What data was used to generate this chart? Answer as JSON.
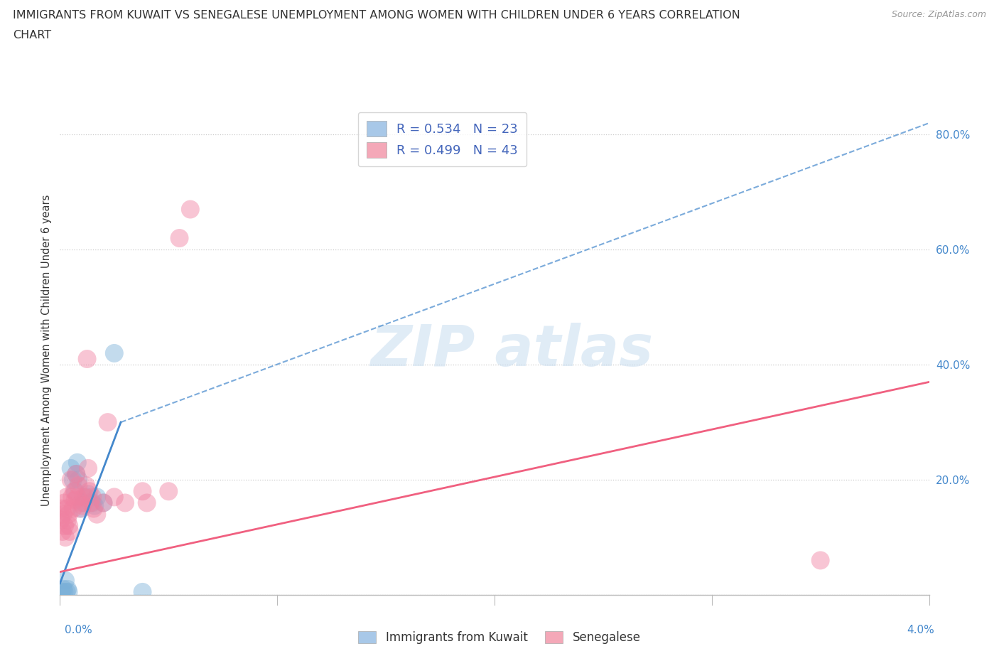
{
  "title_line1": "IMMIGRANTS FROM KUWAIT VS SENEGALESE UNEMPLOYMENT AMONG WOMEN WITH CHILDREN UNDER 6 YEARS CORRELATION",
  "title_line2": "CHART",
  "source": "Source: ZipAtlas.com",
  "ylabel": "Unemployment Among Women with Children Under 6 years",
  "x_lim": [
    0.0,
    0.04
  ],
  "y_lim": [
    0.0,
    0.85
  ],
  "y_ticks": [
    0.0,
    0.2,
    0.4,
    0.6,
    0.8
  ],
  "y_tick_labels": [
    "",
    "20.0%",
    "40.0%",
    "60.0%",
    "80.0%"
  ],
  "legend_entries": [
    {
      "label": "R = 0.534   N = 23",
      "color": "#a8c8e8"
    },
    {
      "label": "R = 0.499   N = 43",
      "color": "#f4a8b8"
    }
  ],
  "legend_bottom": [
    {
      "label": "Immigrants from Kuwait",
      "color": "#a8c8e8"
    },
    {
      "label": "Senegalese",
      "color": "#f4a8b8"
    }
  ],
  "kuwait_points": [
    [
      8e-05,
      0.005
    ],
    [
      0.00015,
      0.01
    ],
    [
      0.0002,
      0.005
    ],
    [
      0.00025,
      0.025
    ],
    [
      0.0003,
      0.005
    ],
    [
      0.00035,
      0.01
    ],
    [
      0.0004,
      0.005
    ],
    [
      0.0005,
      0.22
    ],
    [
      0.0006,
      0.2
    ],
    [
      0.0007,
      0.18
    ],
    [
      0.00075,
      0.21
    ],
    [
      0.0008,
      0.23
    ],
    [
      0.00085,
      0.2
    ],
    [
      0.001,
      0.15
    ],
    [
      0.0011,
      0.16
    ],
    [
      0.0012,
      0.17
    ],
    [
      0.0013,
      0.175
    ],
    [
      0.0015,
      0.16
    ],
    [
      0.0016,
      0.155
    ],
    [
      0.0017,
      0.17
    ],
    [
      0.002,
      0.16
    ],
    [
      0.0025,
      0.42
    ],
    [
      0.0038,
      0.005
    ]
  ],
  "senegalese_points": [
    [
      5e-05,
      0.13
    ],
    [
      0.0001,
      0.15
    ],
    [
      0.00012,
      0.11
    ],
    [
      0.00015,
      0.14
    ],
    [
      0.0002,
      0.16
    ],
    [
      0.00022,
      0.12
    ],
    [
      0.00025,
      0.1
    ],
    [
      0.0003,
      0.17
    ],
    [
      0.00032,
      0.15
    ],
    [
      0.00035,
      0.13
    ],
    [
      0.0004,
      0.14
    ],
    [
      0.00042,
      0.12
    ],
    [
      0.00045,
      0.11
    ],
    [
      0.0005,
      0.2
    ],
    [
      0.00055,
      0.17
    ],
    [
      0.0006,
      0.15
    ],
    [
      0.00065,
      0.18
    ],
    [
      0.0007,
      0.165
    ],
    [
      0.00075,
      0.21
    ],
    [
      0.0008,
      0.17
    ],
    [
      0.00085,
      0.19
    ],
    [
      0.0009,
      0.15
    ],
    [
      0.001,
      0.16
    ],
    [
      0.00105,
      0.155
    ],
    [
      0.0011,
      0.17
    ],
    [
      0.0012,
      0.19
    ],
    [
      0.00125,
      0.41
    ],
    [
      0.0013,
      0.22
    ],
    [
      0.00135,
      0.18
    ],
    [
      0.0014,
      0.16
    ],
    [
      0.0015,
      0.17
    ],
    [
      0.00155,
      0.15
    ],
    [
      0.0017,
      0.14
    ],
    [
      0.002,
      0.16
    ],
    [
      0.0022,
      0.3
    ],
    [
      0.0025,
      0.17
    ],
    [
      0.003,
      0.16
    ],
    [
      0.0038,
      0.18
    ],
    [
      0.004,
      0.16
    ],
    [
      0.005,
      0.18
    ],
    [
      0.0055,
      0.62
    ],
    [
      0.006,
      0.67
    ],
    [
      0.035,
      0.06
    ]
  ],
  "kuwait_solid_line": {
    "x": [
      0.0,
      0.0028
    ],
    "y": [
      0.02,
      0.3
    ]
  },
  "kuwait_dashed_line": {
    "x": [
      0.0028,
      0.04
    ],
    "y": [
      0.3,
      0.82
    ]
  },
  "senegalese_solid_line": {
    "x": [
      0.0,
      0.04
    ],
    "y": [
      0.04,
      0.37
    ]
  },
  "marker_size": 350,
  "marker_alpha": 0.45,
  "kuwait_color": "#7ab0d8",
  "senegalese_color": "#f080a0",
  "kuwait_line_color": "#4488cc",
  "senegalese_line_color": "#f06080",
  "grid_color": "#cccccc",
  "bg_color": "#ffffff"
}
